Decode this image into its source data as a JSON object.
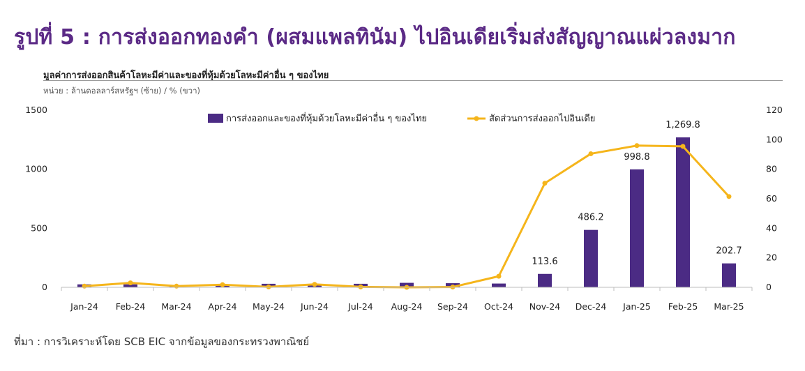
{
  "figure_title": "รูปที่ 5 : การส่งออกทองคำ (ผสมแพลทินัม) ไปอินเดียเริ่มส่งสัญญาณแผ่วลงมาก",
  "source": "ที่มา : การวิเคราะห์โดย SCB EIC จากข้อมูลของกระทรวงพาณิชย์",
  "colors": {
    "title": "#5b2a86",
    "bar": "#4b2b84",
    "line": "#f5b51b"
  },
  "chart_data": {
    "type": "bar",
    "title": "มูลค่าการส่งออกสินค้าโลหะมีค่าและของที่หุ้มด้วยโลหะมีค่าอื่น ๆ ของไทย",
    "subtitle": "หน่วย : ล้านดอลลาร์สหรัฐฯ (ซ้าย) / % (ขวา)",
    "categories": [
      "Jan-24",
      "Feb-24",
      "Mar-24",
      "Apr-24",
      "May-24",
      "Jun-24",
      "Jul-24",
      "Aug-24",
      "Sep-24",
      "Oct-24",
      "Nov-24",
      "Dec-24",
      "Jan-25",
      "Feb-25",
      "Mar-25"
    ],
    "series": [
      {
        "name": "การส่งออกและของที่หุ้มด้วยโลหะมีค่าอื่น ๆ ของไทย",
        "type": "bar",
        "axis": "left",
        "values": [
          25,
          25,
          18,
          18,
          30,
          25,
          30,
          38,
          35,
          32,
          113.6,
          486.2,
          998.8,
          1269.8,
          202.7
        ],
        "data_labels": [
          null,
          null,
          null,
          null,
          null,
          null,
          null,
          null,
          null,
          null,
          "113.6",
          "486.2",
          "998.8",
          "1,269.8",
          "202.7"
        ]
      },
      {
        "name": "สัดส่วนการส่งออกไปอินเดีย",
        "type": "line",
        "axis": "right",
        "values": [
          0.8,
          3.0,
          0.8,
          1.8,
          0.3,
          2.0,
          0.3,
          0,
          0.2,
          7.5,
          70.5,
          90.5,
          96,
          95.5,
          61.5
        ]
      }
    ],
    "y_left": {
      "ylim": [
        0,
        1500
      ],
      "ticks": [
        0,
        500,
        1000,
        1500
      ]
    },
    "y_right": {
      "ylim": [
        0,
        120
      ],
      "ticks": [
        0,
        20,
        40,
        60,
        80,
        100,
        120
      ]
    },
    "grid": false,
    "legend_position": "top"
  }
}
